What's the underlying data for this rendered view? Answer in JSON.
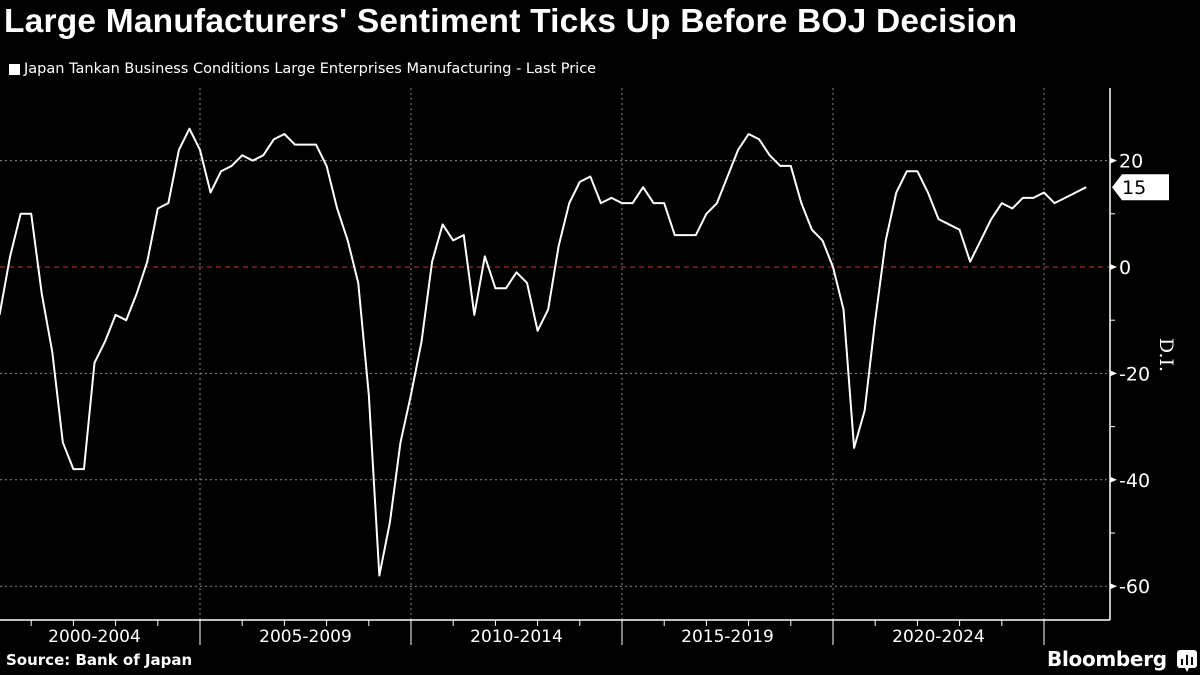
{
  "title": "Large Manufacturers' Sentiment Ticks Up Before BOJ Decision",
  "source": "Source: Bank of Japan",
  "brand": "Bloomberg",
  "colors": {
    "background": "#000000",
    "line": "#ffffff",
    "zero_line": "#c0392b",
    "grid": "#8a8a8a"
  },
  "chart_data": {
    "type": "line",
    "title": "Large Manufacturers' Sentiment Ticks Up Before BOJ Decision",
    "ylabel": "D.I.",
    "ylim": [
      -62,
      28
    ],
    "yticks": [
      20,
      0,
      -20,
      -40,
      -60
    ],
    "x_tick_labels": [
      "2000-2004",
      "2005-2009",
      "2010-2014",
      "2015-2019",
      "2020-2024"
    ],
    "grid": true,
    "legend_placement": "top-left",
    "last_value_label": "15",
    "frequency": "quarterly",
    "x_start": "2000-03",
    "x_end": "2025-12",
    "series": [
      {
        "name": "Japan Tankan Business Conditions Large Enterprises Manufacturing - Last Price",
        "values": [
          -9,
          2,
          10,
          10,
          -5,
          -16,
          -33,
          -38,
          -38,
          -18,
          -14,
          -9,
          -10,
          -5,
          1,
          11,
          12,
          22,
          26,
          22,
          14,
          18,
          19,
          21,
          20,
          21,
          24,
          25,
          23,
          23,
          23,
          19,
          11,
          5,
          -3,
          -24,
          -58,
          -48,
          -33,
          -24,
          -14,
          1,
          8,
          5,
          6,
          -9,
          2,
          -4,
          -4,
          -1,
          -3,
          -12,
          -8,
          4,
          12,
          16,
          17,
          12,
          13,
          12,
          12,
          15,
          12,
          12,
          6,
          6,
          6,
          10,
          12,
          17,
          22,
          25,
          24,
          21,
          19,
          19,
          12,
          7,
          5,
          0,
          -8,
          -34,
          -27,
          -10,
          5,
          14,
          18,
          18,
          14,
          9,
          8,
          7,
          1,
          5,
          9,
          12,
          11,
          13,
          13,
          14,
          12,
          13,
          14,
          15
        ]
      }
    ]
  }
}
